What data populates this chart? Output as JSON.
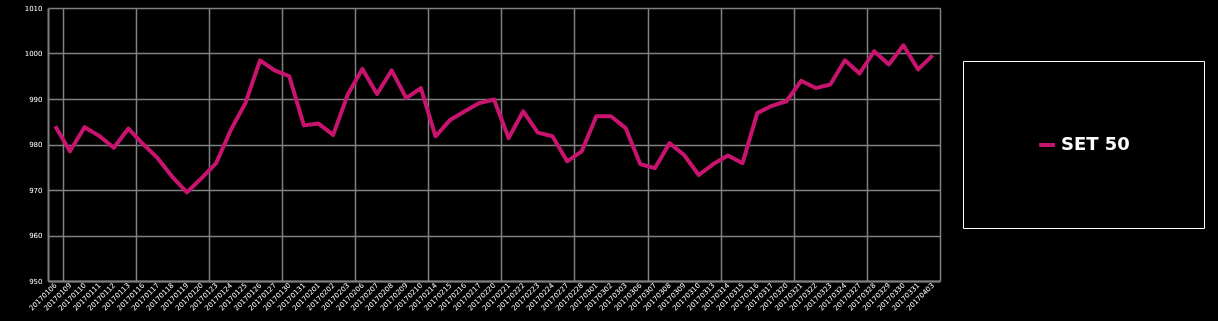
{
  "chart_data": {
    "type": "line",
    "categories": [
      "20170106",
      "20170109",
      "20170110",
      "20170111",
      "20170112",
      "20170113",
      "20170116",
      "20170117",
      "20170118",
      "20170119",
      "20170120",
      "20170123",
      "20170124",
      "20170125",
      "20170126",
      "20170127",
      "20170130",
      "20170131",
      "20170201",
      "20170202",
      "20170203",
      "20170206",
      "20170207",
      "20170208",
      "20170209",
      "20170210",
      "20170214",
      "20170215",
      "20170216",
      "20170217",
      "20170220",
      "20170221",
      "20170222",
      "20170223",
      "20170224",
      "20170227",
      "20170228",
      "20170301",
      "20170302",
      "20170303",
      "20170306",
      "20170307",
      "20170308",
      "20170309",
      "20170310",
      "20170313",
      "20170314",
      "20170315",
      "20170316",
      "20170317",
      "20170320",
      "20170321",
      "20170322",
      "20170323",
      "20170324",
      "20170327",
      "20170328",
      "20170329",
      "20170330",
      "20170331",
      "20170403"
    ],
    "series": [
      {
        "name": "SET 50",
        "color": "#c8136f",
        "values": [
          984.0,
          978.5,
          983.8,
          981.9,
          979.3,
          983.5,
          980.1,
          977.0,
          972.9,
          969.5,
          972.6,
          975.9,
          983.2,
          989.1,
          998.5,
          996.3,
          995.0,
          984.2,
          984.6,
          982.1,
          991.0,
          996.6,
          991.1,
          996.3,
          990.2,
          992.4,
          981.8,
          985.4,
          987.3,
          989.1,
          989.9,
          981.4,
          987.3,
          982.6,
          981.8,
          976.3,
          978.5,
          986.2,
          986.2,
          983.6,
          975.7,
          974.8,
          980.3,
          977.7,
          973.3,
          975.7,
          977.6,
          975.9,
          986.9,
          988.5,
          989.5,
          994.0,
          992.4,
          993.2,
          998.5,
          995.6,
          1000.5,
          997.6,
          1001.8,
          996.5,
          999.6
        ]
      }
    ],
    "ylim": [
      950,
      1010
    ],
    "yticks": [
      950,
      960,
      970,
      980,
      990,
      1000,
      1010
    ],
    "grid": true,
    "legend": "right"
  }
}
